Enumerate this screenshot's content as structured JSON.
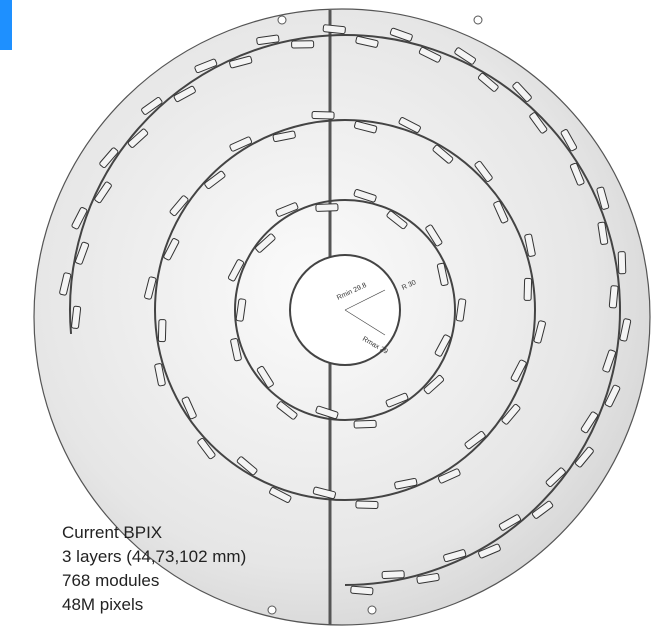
{
  "caption": {
    "lines": [
      "Current BPIX",
      "3 layers (44,73,102 mm)",
      "768 modules",
      "48M pixels"
    ]
  },
  "dimensions": [
    "Rmin 29.8",
    "R 30",
    "Rmax 29"
  ]
}
